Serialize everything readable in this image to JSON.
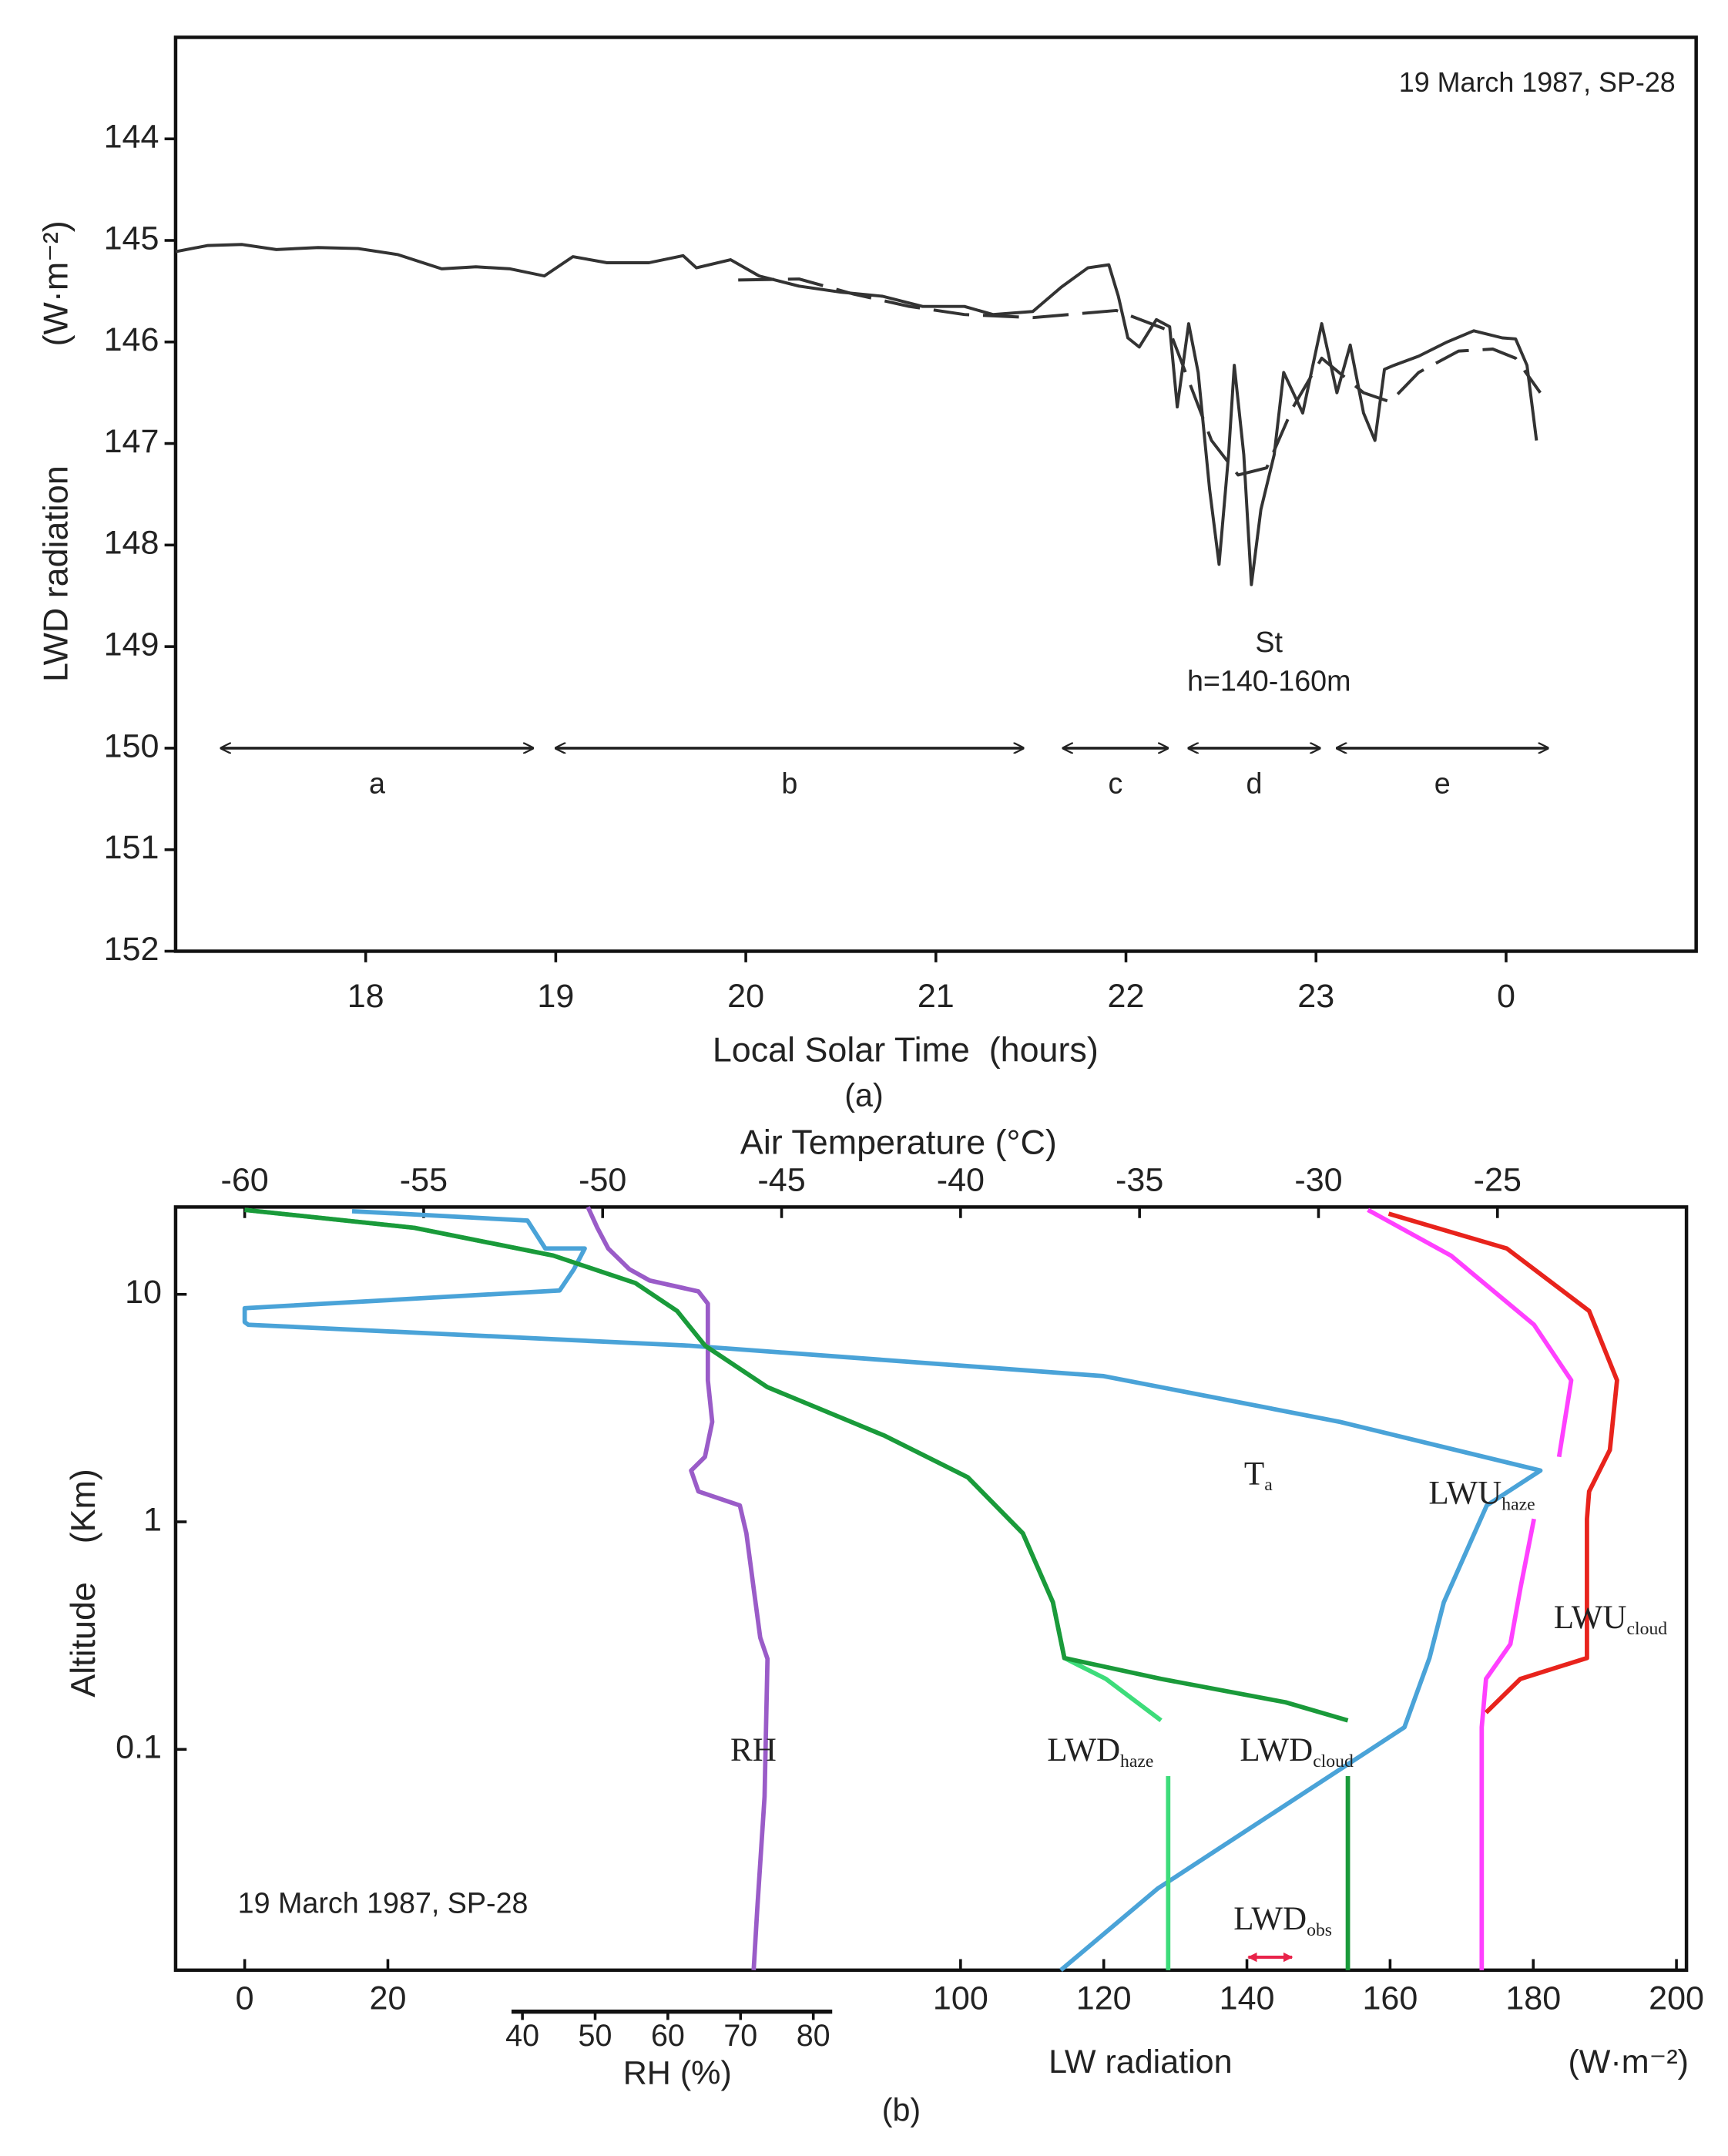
{
  "chart_data": [
    {
      "type": "line",
      "annotation": "19 March 1987, SP-28",
      "cloud_label": "St",
      "cloud_height": "h=140-160m",
      "ylabel": "LWD radiation",
      "yunit": "(W·m⁻²)",
      "xlabel": "Local Solar Time  (hours)",
      "caption": "(a)",
      "xlim": [
        17,
        25
      ],
      "ylim": [
        143,
        152
      ],
      "y_inverted": true,
      "xticks": [
        18,
        19,
        20,
        21,
        22,
        23,
        {
          "value": 24,
          "label": "0"
        }
      ],
      "yticks": [
        144,
        145,
        146,
        147,
        148,
        149,
        150,
        151,
        152
      ],
      "series": [
        {
          "color": "#333333",
          "style": "solid",
          "x": [
            17.0,
            17.17,
            17.35,
            17.53,
            17.75,
            17.96,
            18.17,
            18.4,
            18.58,
            18.76,
            18.94,
            19.09,
            19.27,
            19.49,
            19.67,
            19.74,
            19.92,
            20.07,
            20.28,
            20.5,
            20.72,
            20.93,
            21.15,
            21.3,
            21.51,
            21.66,
            21.8,
            21.91,
            21.96,
            22.01,
            22.07,
            22.16,
            22.23,
            22.27,
            22.33,
            22.38,
            22.44,
            22.49,
            22.54,
            22.57,
            22.62,
            22.66,
            22.71,
            22.78,
            22.83,
            22.93,
            23.03,
            23.11,
            23.18,
            23.25,
            23.31,
            23.36,
            23.41,
            23.54,
            23.69,
            23.83,
            23.98,
            24.05,
            24.11,
            24.16
          ],
          "values": [
            145.11,
            145.05,
            145.04,
            145.09,
            145.07,
            145.08,
            145.14,
            145.28,
            145.26,
            145.28,
            145.35,
            145.16,
            145.22,
            145.22,
            145.15,
            145.27,
            145.19,
            145.35,
            145.45,
            145.51,
            145.55,
            145.65,
            145.65,
            145.73,
            145.7,
            145.46,
            145.27,
            145.24,
            145.55,
            145.96,
            146.05,
            145.78,
            145.85,
            146.64,
            145.82,
            146.3,
            147.45,
            148.19,
            147.11,
            146.23,
            147.11,
            148.39,
            147.65,
            147.11,
            146.3,
            146.7,
            145.82,
            146.5,
            146.03,
            146.7,
            146.97,
            146.27,
            146.23,
            146.14,
            146.0,
            145.89,
            145.96,
            145.97,
            146.23,
            146.97
          ]
        },
        {
          "color": "#333333",
          "style": "dashed",
          "x": [
            19.96,
            20.28,
            20.57,
            20.86,
            21.15,
            21.51,
            21.95,
            22.23,
            22.45,
            22.59,
            22.74,
            22.88,
            23.03,
            23.25,
            23.39,
            23.54,
            23.75,
            23.93,
            24.05,
            24.18
          ],
          "values": [
            145.39,
            145.38,
            145.53,
            145.65,
            145.73,
            145.76,
            145.69,
            145.89,
            146.97,
            147.31,
            147.24,
            146.64,
            146.16,
            146.5,
            146.59,
            146.3,
            146.09,
            146.07,
            146.16,
            146.5
          ]
        }
      ],
      "period_level": 150,
      "periods": [
        {
          "label": "a",
          "start": 17.24,
          "end": 18.88
        },
        {
          "label": "b",
          "start": 19.0,
          "end": 21.46
        },
        {
          "label": "c",
          "start": 21.67,
          "end": 22.22
        },
        {
          "label": "d",
          "start": 22.33,
          "end": 23.02
        },
        {
          "label": "e",
          "start": 23.11,
          "end": 24.22
        }
      ]
    },
    {
      "type": "profile",
      "annotation": "19 March 1987, SP-28",
      "ylabel": "Altitude    (Km)",
      "xlabel": "LW radiation",
      "xunit": "(W·m⁻²)",
      "x2label": "Air Temperature (°C)",
      "x3label": "RH (%)",
      "caption": "(b)",
      "log_y": true,
      "ylim": [
        0.0107,
        24.2
      ],
      "yticks": [
        10,
        1,
        0.1
      ],
      "xlim": [
        -9.65,
        201.4
      ],
      "xticks": [
        0,
        20,
        100,
        120,
        140,
        160,
        180,
        200
      ],
      "x2lim": [
        -61.93,
        -19.72
      ],
      "x2ticks": [
        -60,
        -55,
        -50,
        -45,
        -40,
        -35,
        -30,
        -25
      ],
      "x3lim": [
        38.5,
        82.6
      ],
      "x3ticks": [
        40,
        50,
        60,
        70,
        80
      ],
      "series": [
        {
          "name": "RH",
          "axis": "x3",
          "color": "#9a5cc8",
          "values": [
            49.0,
            50.3,
            51.8,
            54.7,
            57.5,
            64.2,
            65.5,
            65.5,
            66.1,
            65.1,
            63.2,
            64.2,
            69.9,
            70.8,
            71.8,
            72.7,
            73.7,
            73.3,
            72.3,
            71.8
          ],
          "altitude": [
            24.2,
            19.6,
            15.9,
            12.9,
            11.5,
            10.3,
            9.1,
            4.19,
            2.75,
            1.93,
            1.68,
            1.36,
            1.18,
            0.89,
            0.51,
            0.31,
            0.25,
            0.062,
            0.02,
            0.0107
          ]
        },
        {
          "name": "T",
          "name_sub": "a",
          "axis": "x2",
          "color": "#4aa3d8",
          "values": [
            -57.0,
            -52.1,
            -51.6,
            -50.5,
            -50.8,
            -51.2,
            -60.0,
            -60.0,
            -59.9,
            -47.6,
            -36.0,
            -29.4,
            -23.8,
            -25.3,
            -26.5,
            -26.9,
            -27.6,
            -34.5,
            -37.2
          ],
          "altitude": [
            23.2,
            21.1,
            15.9,
            15.9,
            12.9,
            10.4,
            8.69,
            7.55,
            7.35,
            5.95,
            4.37,
            2.75,
            1.68,
            1.18,
            0.443,
            0.252,
            0.125,
            0.0244,
            0.0107
          ]
        },
        {
          "name": "LWD",
          "name_sub": "haze",
          "axis": "x",
          "color": "#3ddc7a",
          "values": [
            0,
            23.7,
            43.1,
            54.6,
            60.4,
            64.3,
            73.0,
            89.4,
            101.0,
            108.7,
            112.9,
            114.5,
            120.3,
            128.0,
            null,
            129.0,
            129.0
          ],
          "altitude": [
            23.5,
            19.6,
            14.8,
            11.2,
            8.45,
            5.95,
            3.91,
            2.39,
            1.57,
            0.89,
            0.443,
            0.252,
            0.204,
            0.134,
            null,
            0.0763,
            0.0107
          ]
        },
        {
          "name": "LWD",
          "name_sub": "cloud",
          "axis": "x",
          "color": "#1a9a3a",
          "values": [
            0,
            23.7,
            43.1,
            54.6,
            60.4,
            64.3,
            73.0,
            89.4,
            101.0,
            108.7,
            112.9,
            114.5,
            128.0,
            145.4,
            154.1,
            null,
            154.1,
            154.1
          ],
          "altitude": [
            23.5,
            19.6,
            14.8,
            11.2,
            8.45,
            5.95,
            3.91,
            2.39,
            1.57,
            0.89,
            0.443,
            0.252,
            0.204,
            0.161,
            0.134,
            null,
            0.0763,
            0.0107
          ]
        },
        {
          "name": "LWU",
          "name_sub": "haze",
          "axis": "x",
          "color": "#ff40ff",
          "values": [
            156.9,
            168.5,
            180.1,
            185.3,
            183.6,
            null,
            180.1,
            178.2,
            176.8,
            173.4,
            172.8,
            172.8
          ],
          "altitude": [
            23.5,
            14.8,
            7.35,
            4.19,
            1.93,
            null,
            1.03,
            0.51,
            0.29,
            0.204,
            0.125,
            0.0107
          ]
        },
        {
          "name": "LWU",
          "name_sub": "cloud",
          "axis": "x",
          "color": "#e8231c",
          "values": [
            159.8,
            176.3,
            187.8,
            191.7,
            190.7,
            187.8,
            187.5,
            187.5,
            178.2,
            173.4
          ],
          "altitude": [
            22.6,
            15.9,
            8.45,
            4.19,
            2.07,
            1.36,
            1.03,
            0.252,
            0.204,
            0.145
          ]
        }
      ],
      "observation": {
        "name": "LWD",
        "name_sub": "obs",
        "color": "#e8234a",
        "values": [
          140.2,
          146.3
        ],
        "altitude": 0.0122
      }
    }
  ]
}
